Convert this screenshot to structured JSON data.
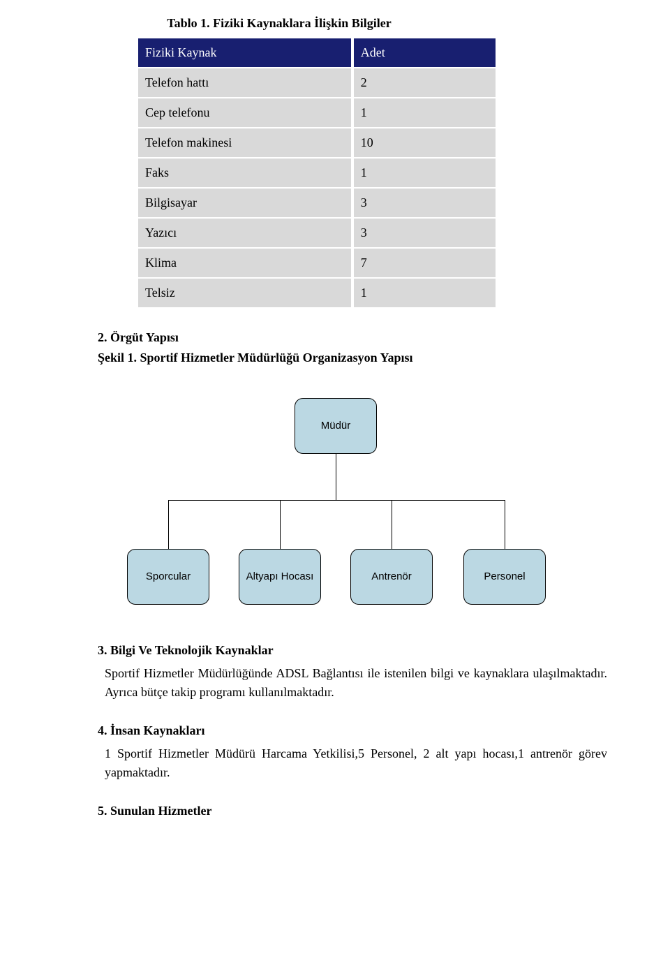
{
  "table_caption": "Tablo 1. Fiziki Kaynaklara İlişkin Bilgiler",
  "table_header_col1": "Fiziki Kaynak",
  "table_header_col2": "Adet",
  "rows": [
    {
      "label": "Telefon hattı",
      "value": "2"
    },
    {
      "label": "Cep telefonu",
      "value": "1"
    },
    {
      "label": "Telefon makinesi",
      "value": "10"
    },
    {
      "label": "Faks",
      "value": "1"
    },
    {
      "label": "Bilgisayar",
      "value": "3"
    },
    {
      "label": "Yazıcı",
      "value": "3"
    },
    {
      "label": "Klima",
      "value": "7"
    },
    {
      "label": "Telsiz",
      "value": "1"
    }
  ],
  "section2_title": "2. Örgüt Yapısı",
  "section2_sub": "Şekil 1. Sportif Hizmetler Müdürlüğü Organizasyon Yapısı",
  "org": {
    "top": "Müdür",
    "children": [
      "Sporcular",
      "Altyapı Hocası",
      "Antrenör",
      "Personel"
    ]
  },
  "section3_title": "3. Bilgi Ve Teknolojik Kaynaklar",
  "section3_body": "Sportif Hizmetler Müdürlüğünde ADSL Bağlantısı ile istenilen bilgi ve kaynaklara ulaşılmaktadır. Ayrıca bütçe takip programı kullanılmaktadır.",
  "section4_title": "4. İnsan Kaynakları",
  "section4_body": "1 Sportif Hizmetler Müdürü Harcama Yetkilisi,5 Personel, 2 alt yapı hocası,1 antrenör görev yapmaktadır.",
  "section5_title": "5. Sunulan Hizmetler"
}
